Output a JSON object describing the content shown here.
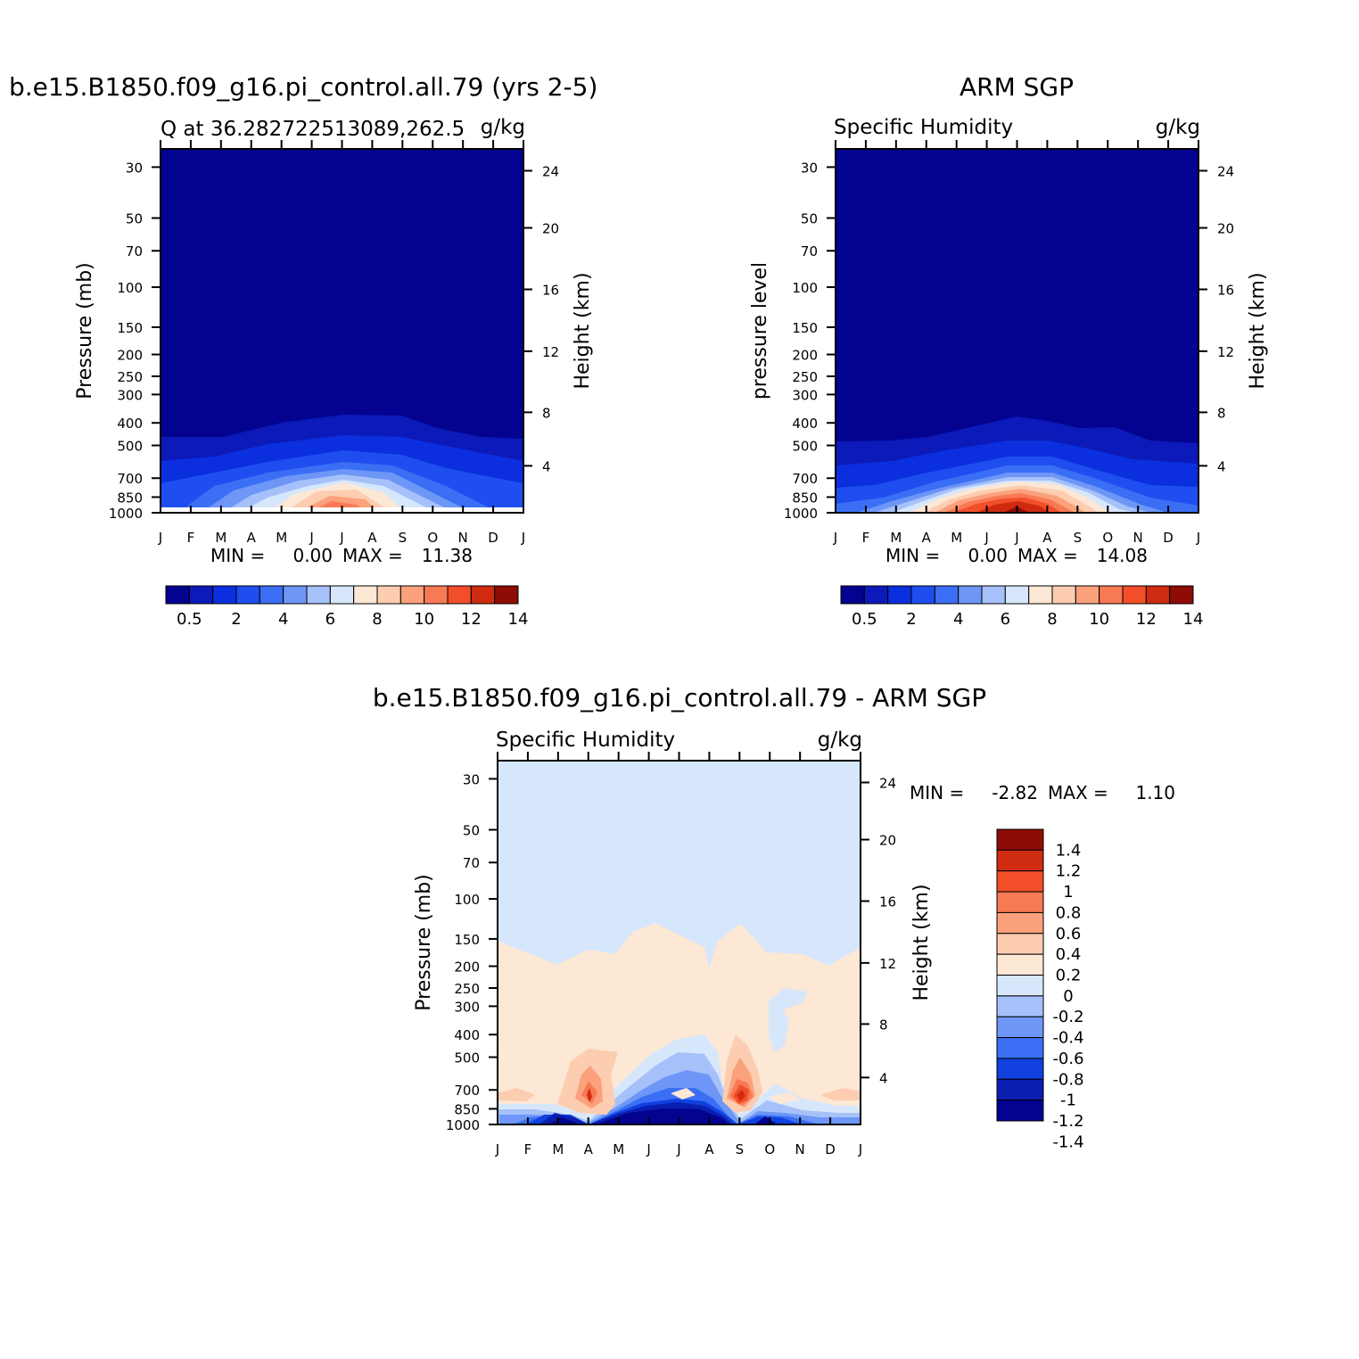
{
  "colors": {
    "seq": [
      "#03038f",
      "#0b1ab8",
      "#0b2fde",
      "#1f4ef0",
      "#3a6ff5",
      "#6e96f7",
      "#a6c1fa",
      "#d7e7fb",
      "#fde7d5",
      "#fccdb0",
      "#fba17c",
      "#f87a55",
      "#f34e2a",
      "#cf2b10",
      "#8f0b05"
    ],
    "div": [
      "#03038f",
      "#0a1eb0",
      "#1040de",
      "#3a6ff5",
      "#6e96f7",
      "#a6c1fa",
      "#d7e7fb",
      "#fde7d5",
      "#fccdb0",
      "#fba17c",
      "#f87a55",
      "#f34e2a",
      "#cf2b10",
      "#8f0b05"
    ]
  },
  "chart_data": [
    {
      "id": "model",
      "type": "heatmap",
      "title": "b.e15.B1850.f09_g16.pi_control.all.79 (yrs 2-5)",
      "subtitle_left": "Q at 36.282722513089,262.5",
      "subtitle_right": "g/kg",
      "ylabel": "Pressure (mb)",
      "ylabel_right": "Height (km)",
      "x_ticks": [
        "J",
        "F",
        "M",
        "A",
        "M",
        "J",
        "J",
        "A",
        "S",
        "O",
        "N",
        "D",
        "J"
      ],
      "y_ticks": [
        "30",
        "50",
        "70",
        "100",
        "150",
        "200",
        "250",
        "300",
        "400",
        "500",
        "700",
        "850",
        "1000"
      ],
      "y_ticks_right": [
        "24",
        "20",
        "16",
        "12",
        "8",
        "4"
      ],
      "min_label": "MIN =",
      "min_value": "0.00",
      "max_label": "MAX =",
      "max_value": "11.38",
      "colorbar_labels": [
        "0.5",
        "2",
        "4",
        "6",
        "8",
        "10",
        "12",
        "14"
      ]
    },
    {
      "id": "obs",
      "type": "heatmap",
      "title": "ARM SGP",
      "subtitle_left": "Specific Humidity",
      "subtitle_right": "g/kg",
      "ylabel": "pressure level",
      "ylabel_right": "Height (km)",
      "x_ticks": [
        "J",
        "F",
        "M",
        "A",
        "M",
        "J",
        "J",
        "A",
        "S",
        "O",
        "N",
        "D",
        "J"
      ],
      "y_ticks": [
        "30",
        "50",
        "70",
        "100",
        "150",
        "200",
        "250",
        "300",
        "400",
        "500",
        "700",
        "850",
        "1000"
      ],
      "y_ticks_right": [
        "24",
        "20",
        "16",
        "12",
        "8",
        "4"
      ],
      "min_label": "MIN =",
      "min_value": "0.00",
      "max_label": "MAX =",
      "max_value": "14.08",
      "colorbar_labels": [
        "0.5",
        "2",
        "4",
        "6",
        "8",
        "10",
        "12",
        "14"
      ]
    },
    {
      "id": "diff",
      "type": "heatmap",
      "title": "b.e15.B1850.f09_g16.pi_control.all.79 - ARM SGP",
      "subtitle_left": "Specific Humidity",
      "subtitle_right": "g/kg",
      "ylabel": "Pressure (mb)",
      "ylabel_right": "Height (km)",
      "x_ticks": [
        "J",
        "F",
        "M",
        "A",
        "M",
        "J",
        "J",
        "A",
        "S",
        "O",
        "N",
        "D",
        "J"
      ],
      "y_ticks": [
        "30",
        "50",
        "70",
        "100",
        "150",
        "200",
        "250",
        "300",
        "400",
        "500",
        "700",
        "850",
        "1000"
      ],
      "y_ticks_right": [
        "24",
        "20",
        "16",
        "12",
        "8",
        "4"
      ],
      "min_label": "MIN =",
      "min_value": "-2.82",
      "max_label": "MAX =",
      "max_value": "1.10",
      "colorbar_labels": [
        "1.4",
        "1.2",
        "1",
        "0.8",
        "0.6",
        "0.4",
        "0.2",
        "0",
        "-0.2",
        "-0.4",
        "-0.6",
        "-0.8",
        "-1",
        "-1.2",
        "-1.4"
      ]
    }
  ]
}
